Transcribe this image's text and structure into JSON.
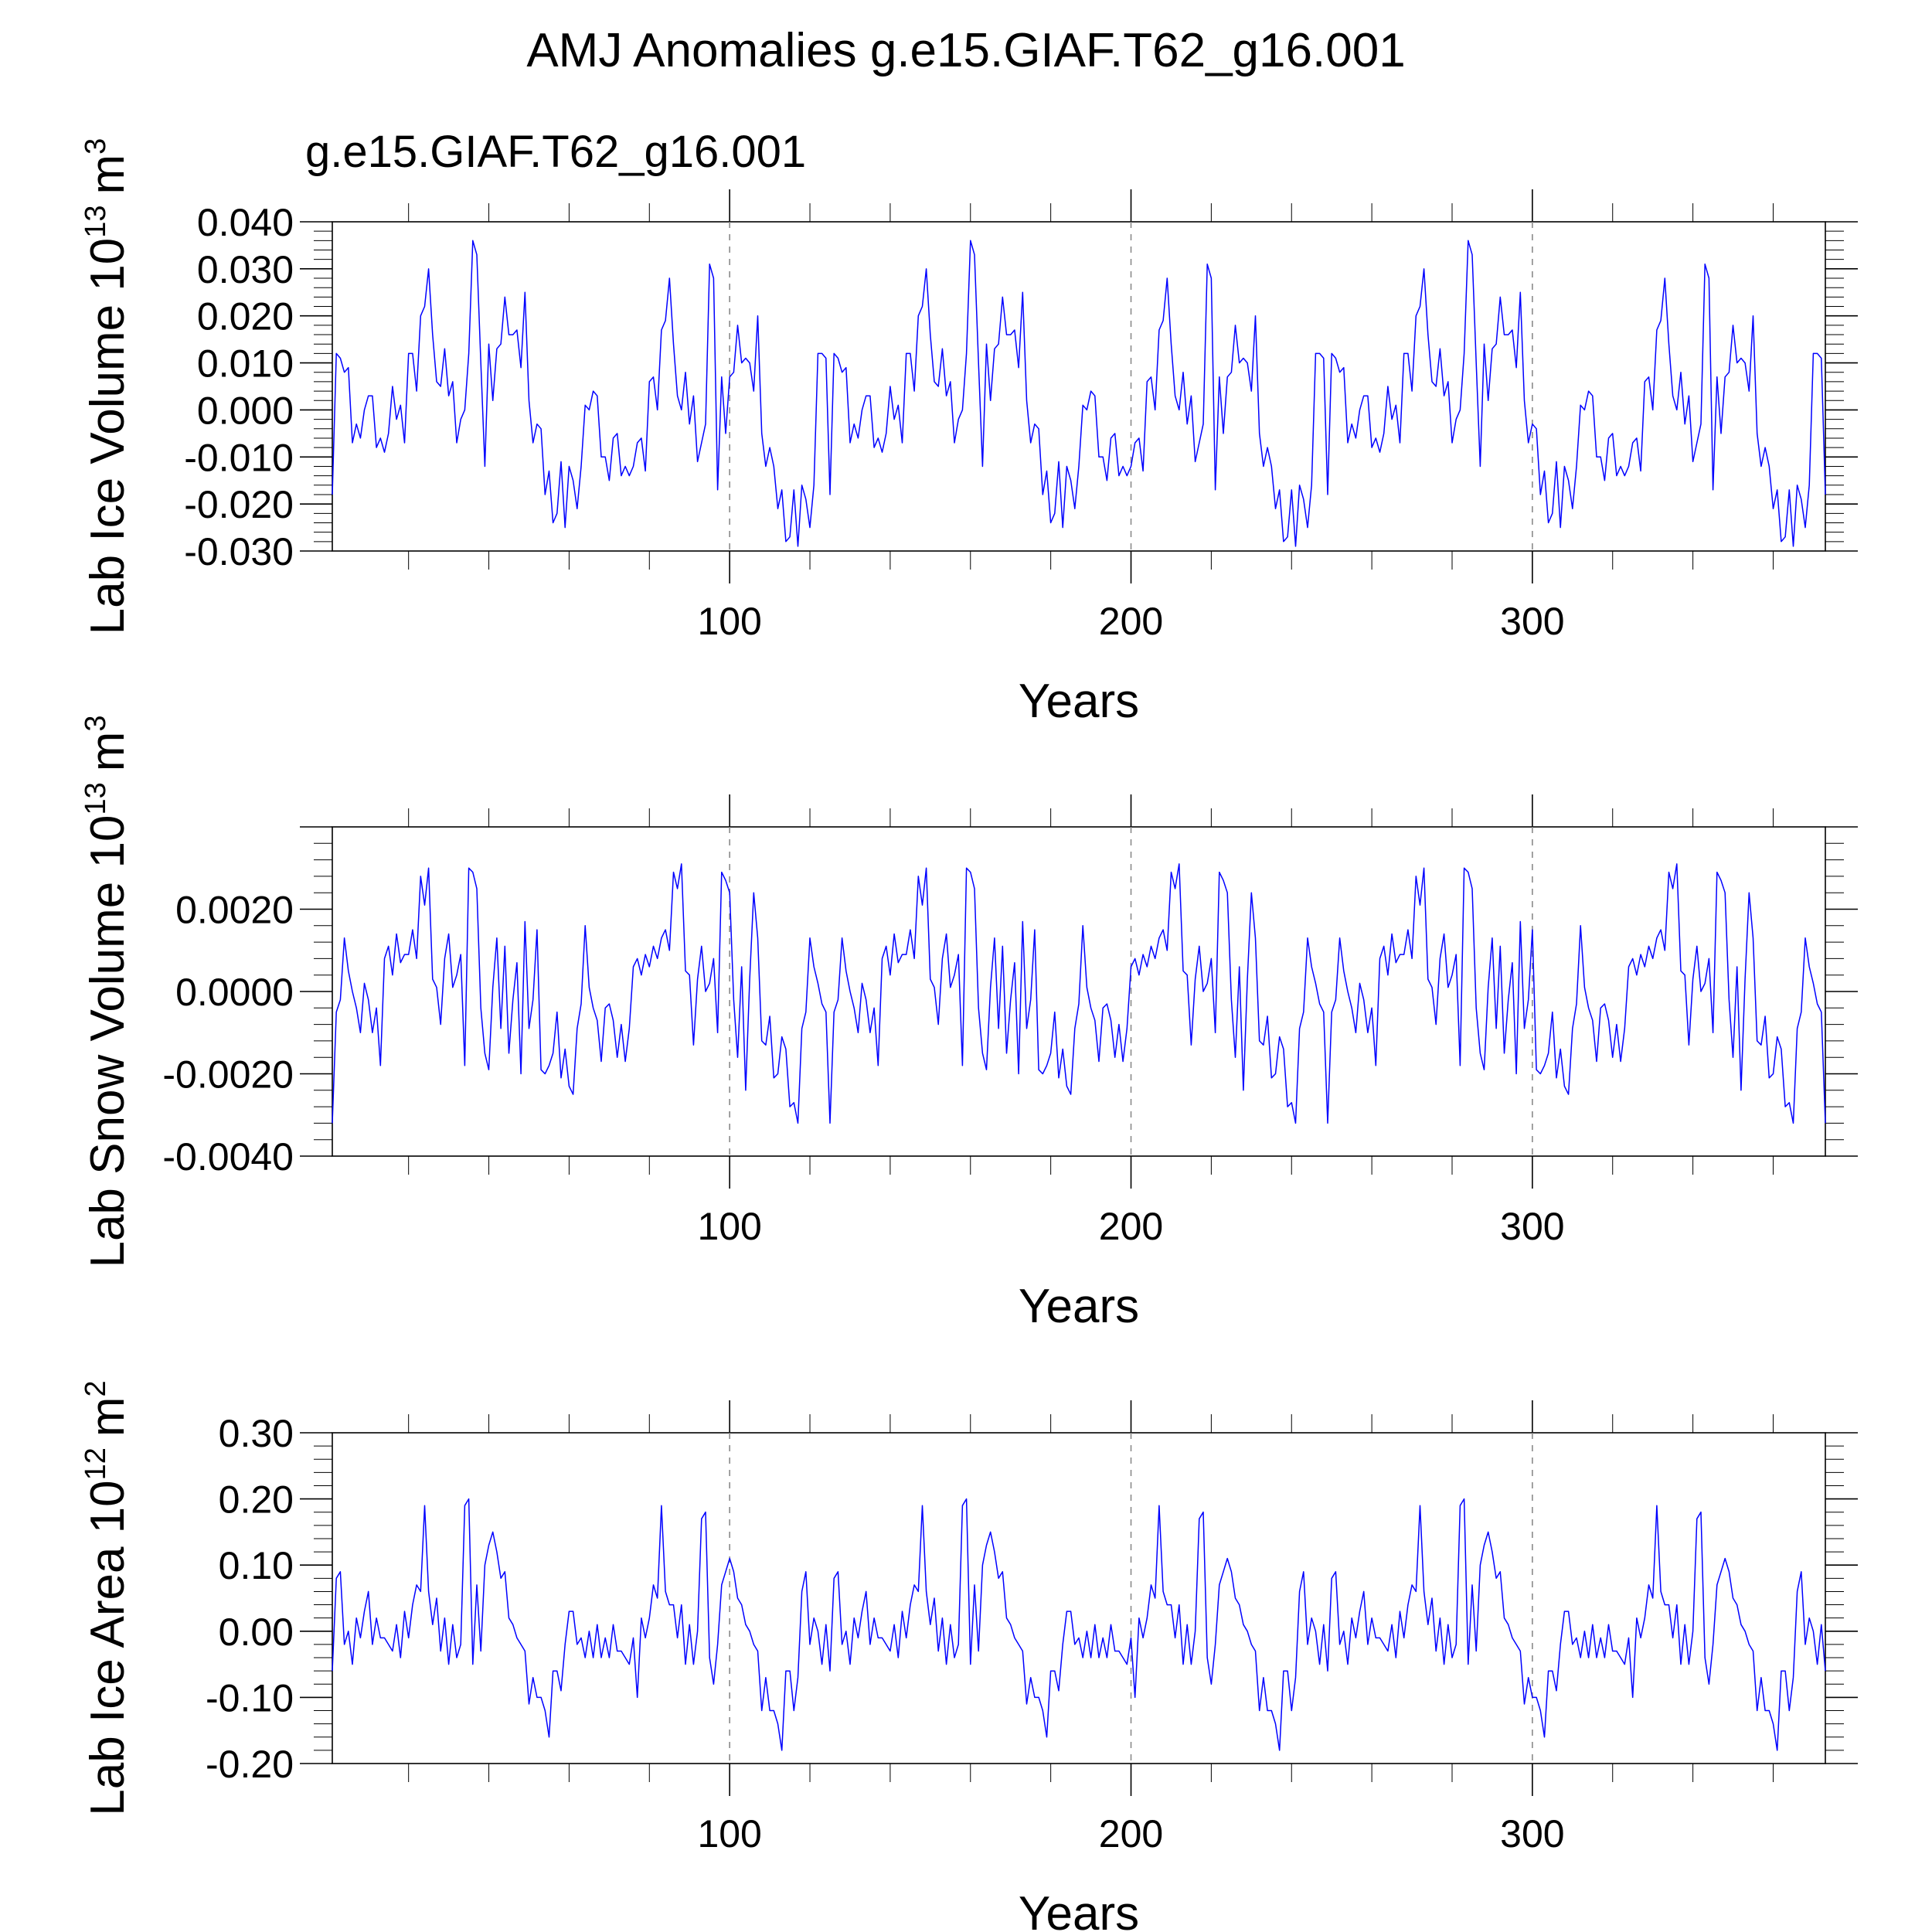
{
  "figure": {
    "title": "AMJ Anomalies g.e15.GIAF.T62_g16.001",
    "subtitle": "g.e15.GIAF.T62_g16.001",
    "subtitle_color": "#0000ff"
  },
  "chart_data": [
    {
      "type": "line",
      "title": "",
      "ylabel": "Lab Ice Volume 10",
      "ylabel_exp": "13",
      "ylabel_unit": "m",
      "ylabel_unit_exp": "3",
      "xlabel": "Years",
      "xlim": [
        1,
        373
      ],
      "ylim": [
        -0.03,
        0.04
      ],
      "yticks": [
        -0.03,
        -0.02,
        -0.01,
        0.0,
        0.01,
        0.02,
        0.03,
        0.04
      ],
      "ytick_labels": [
        "-0.030",
        "-0.020",
        "-0.010",
        "0.000",
        "0.010",
        "0.020",
        "0.030",
        "0.040"
      ],
      "xticks": [
        100,
        200,
        300
      ],
      "xtick_labels": [
        "100",
        "200",
        "300"
      ],
      "reference_lines_x": [
        100,
        200,
        300
      ],
      "grid": false,
      "series": [
        {
          "color": "#0000ff",
          "cycle_length": 124,
          "values": [
            -0.018,
            0.012,
            0.011,
            0.008,
            0.009,
            -0.007,
            -0.003,
            -0.006,
            0.0,
            0.003,
            0.003,
            -0.008,
            -0.006,
            -0.009,
            -0.005,
            0.005,
            -0.002,
            0.001,
            -0.007,
            0.012,
            0.012,
            0.004,
            0.02,
            0.022,
            0.03,
            0.016,
            0.006,
            0.005,
            0.013,
            0.003,
            0.006,
            -0.007,
            -0.002,
            0.0,
            0.012,
            0.036,
            0.033,
            0.01,
            -0.012,
            0.014,
            0.002,
            0.013,
            0.014,
            0.024,
            0.016,
            0.016,
            0.017,
            0.009,
            0.025,
            0.002,
            -0.007,
            -0.003,
            -0.004,
            -0.018,
            -0.013,
            -0.024,
            -0.022,
            -0.011,
            -0.025,
            -0.012,
            -0.015,
            -0.021,
            -0.012,
            0.001,
            0.0,
            0.004,
            0.003,
            -0.01,
            -0.01,
            -0.015,
            -0.006,
            -0.005,
            -0.014,
            -0.012,
            -0.014,
            -0.012,
            -0.007,
            -0.006,
            -0.013,
            0.006,
            0.007,
            0.0,
            0.017,
            0.019,
            0.028,
            0.014,
            0.003,
            0.0,
            0.008,
            -0.003,
            0.003,
            -0.011,
            -0.007,
            -0.003,
            0.031,
            0.028,
            -0.017,
            0.007,
            -0.005,
            0.007,
            0.008,
            0.018,
            0.01,
            0.011,
            0.01,
            0.004,
            0.02,
            -0.005,
            -0.012,
            -0.008,
            -0.012,
            -0.021,
            -0.017,
            -0.028,
            -0.027,
            -0.017,
            -0.029,
            -0.016,
            -0.019,
            -0.025,
            -0.016,
            0.012,
            0.012,
            0.011
          ]
        }
      ]
    },
    {
      "type": "line",
      "title": "",
      "ylabel": "Lab Snow Volume 10",
      "ylabel_exp": "13",
      "ylabel_unit": "m",
      "ylabel_unit_exp": "3",
      "xlabel": "Years",
      "xlim": [
        1,
        373
      ],
      "ylim": [
        -0.004,
        0.004
      ],
      "yticks": [
        -0.004,
        -0.002,
        0.0,
        0.002
      ],
      "ytick_labels": [
        "-0.0040",
        "-0.0020",
        "0.0000",
        "0.0020"
      ],
      "xticks": [
        100,
        200,
        300
      ],
      "xtick_labels": [
        "100",
        "200",
        "300"
      ],
      "reference_lines_x": [
        100,
        200,
        300
      ],
      "grid": false,
      "series": [
        {
          "color": "#0000ff",
          "cycle_length": 124,
          "values": [
            -0.0032,
            -0.0005,
            -0.0002,
            0.0013,
            0.0005,
            0.0,
            -0.0004,
            -0.001,
            0.0002,
            -0.0002,
            -0.001,
            -0.0004,
            -0.0018,
            0.0008,
            0.0011,
            0.0004,
            0.0014,
            0.0007,
            0.0009,
            0.0009,
            0.0015,
            0.0008,
            0.0028,
            0.0021,
            0.003,
            0.0003,
            0.0001,
            -0.0008,
            0.0008,
            0.0014,
            0.0001,
            0.0004,
            0.0009,
            -0.0018,
            0.003,
            0.0029,
            0.0025,
            -0.0004,
            -0.0015,
            -0.0019,
            0.0001,
            0.0013,
            -0.0009,
            0.0011,
            -0.0015,
            -0.0002,
            0.0007,
            -0.002,
            0.0017,
            -0.0009,
            -0.0002,
            0.0015,
            -0.0019,
            -0.002,
            -0.0018,
            -0.0015,
            -0.0005,
            -0.0021,
            -0.0014,
            -0.0023,
            -0.0025,
            -0.0009,
            -0.0003,
            0.0016,
            0.0001,
            -0.0004,
            -0.0007,
            -0.0017,
            -0.0004,
            -0.0003,
            -0.0007,
            -0.0016,
            -0.0008,
            -0.0017,
            -0.0009,
            0.0006,
            0.0008,
            0.0004,
            0.0009,
            0.0006,
            0.0011,
            0.0008,
            0.0013,
            0.0015,
            0.001,
            0.0029,
            0.0025,
            0.0031,
            0.0005,
            0.0004,
            -0.0013,
            0.0003,
            0.0011,
            0.0,
            0.0002,
            0.0008,
            -0.001,
            0.0029,
            0.0027,
            0.0024,
            -0.0002,
            -0.0016,
            0.0006,
            -0.0024,
            0.0003,
            0.0024,
            0.0013,
            -0.0012,
            -0.0013,
            -0.0006,
            -0.0021,
            -0.002,
            -0.0011,
            -0.0014,
            -0.0028,
            -0.0027,
            -0.0032,
            -0.0009,
            -0.0005,
            0.0013,
            0.0006,
            0.0002,
            -0.0003,
            -0.0005
          ]
        }
      ]
    },
    {
      "type": "line",
      "title": "",
      "ylabel": "Lab Ice Area 10",
      "ylabel_exp": "12",
      "ylabel_unit": "m",
      "ylabel_unit_exp": "2",
      "xlabel": "Years",
      "xlim": [
        1,
        373
      ],
      "ylim": [
        -0.2,
        0.3
      ],
      "yticks": [
        -0.2,
        -0.1,
        0.0,
        0.1,
        0.2,
        0.3
      ],
      "ytick_labels": [
        "-0.20",
        "-0.10",
        "0.00",
        "0.10",
        "0.20",
        "0.30"
      ],
      "xticks": [
        100,
        200,
        300
      ],
      "xtick_labels": [
        "100",
        "200",
        "300"
      ],
      "reference_lines_x": [
        100,
        200,
        300
      ],
      "grid": false,
      "series": [
        {
          "color": "#0000ff",
          "cycle_length": 124,
          "values": [
            -0.06,
            0.08,
            0.09,
            -0.02,
            0.0,
            -0.05,
            0.02,
            -0.01,
            0.03,
            0.06,
            -0.02,
            0.02,
            -0.01,
            -0.01,
            -0.02,
            -0.03,
            0.01,
            -0.04,
            0.03,
            -0.01,
            0.04,
            0.07,
            0.06,
            0.19,
            0.06,
            0.01,
            0.05,
            -0.03,
            0.02,
            -0.05,
            0.01,
            -0.04,
            -0.02,
            0.19,
            0.2,
            -0.05,
            0.07,
            -0.03,
            0.1,
            0.13,
            0.15,
            0.12,
            0.08,
            0.09,
            0.02,
            0.01,
            -0.01,
            -0.02,
            -0.03,
            -0.11,
            -0.07,
            -0.1,
            -0.1,
            -0.12,
            -0.16,
            -0.06,
            -0.06,
            -0.09,
            -0.02,
            0.03,
            0.03,
            -0.02,
            -0.01,
            -0.04,
            0.0,
            -0.04,
            0.01,
            -0.04,
            -0.01,
            -0.04,
            0.01,
            -0.03,
            -0.03,
            -0.04,
            -0.05,
            -0.01,
            -0.1,
            0.02,
            -0.01,
            0.02,
            0.07,
            0.05,
            0.19,
            0.06,
            0.04,
            0.04,
            -0.01,
            0.04,
            -0.05,
            0.01,
            -0.05,
            0.0,
            0.17,
            0.18,
            -0.04,
            -0.08,
            -0.02,
            0.07,
            0.09,
            0.11,
            0.09,
            0.05,
            0.04,
            0.01,
            0.0,
            -0.02,
            -0.03,
            -0.12,
            -0.07,
            -0.12,
            -0.12,
            -0.14,
            -0.18,
            -0.06,
            -0.06,
            -0.12,
            -0.07,
            0.06,
            0.09,
            -0.02,
            0.02,
            0.0,
            -0.05,
            0.01
          ]
        }
      ]
    }
  ]
}
